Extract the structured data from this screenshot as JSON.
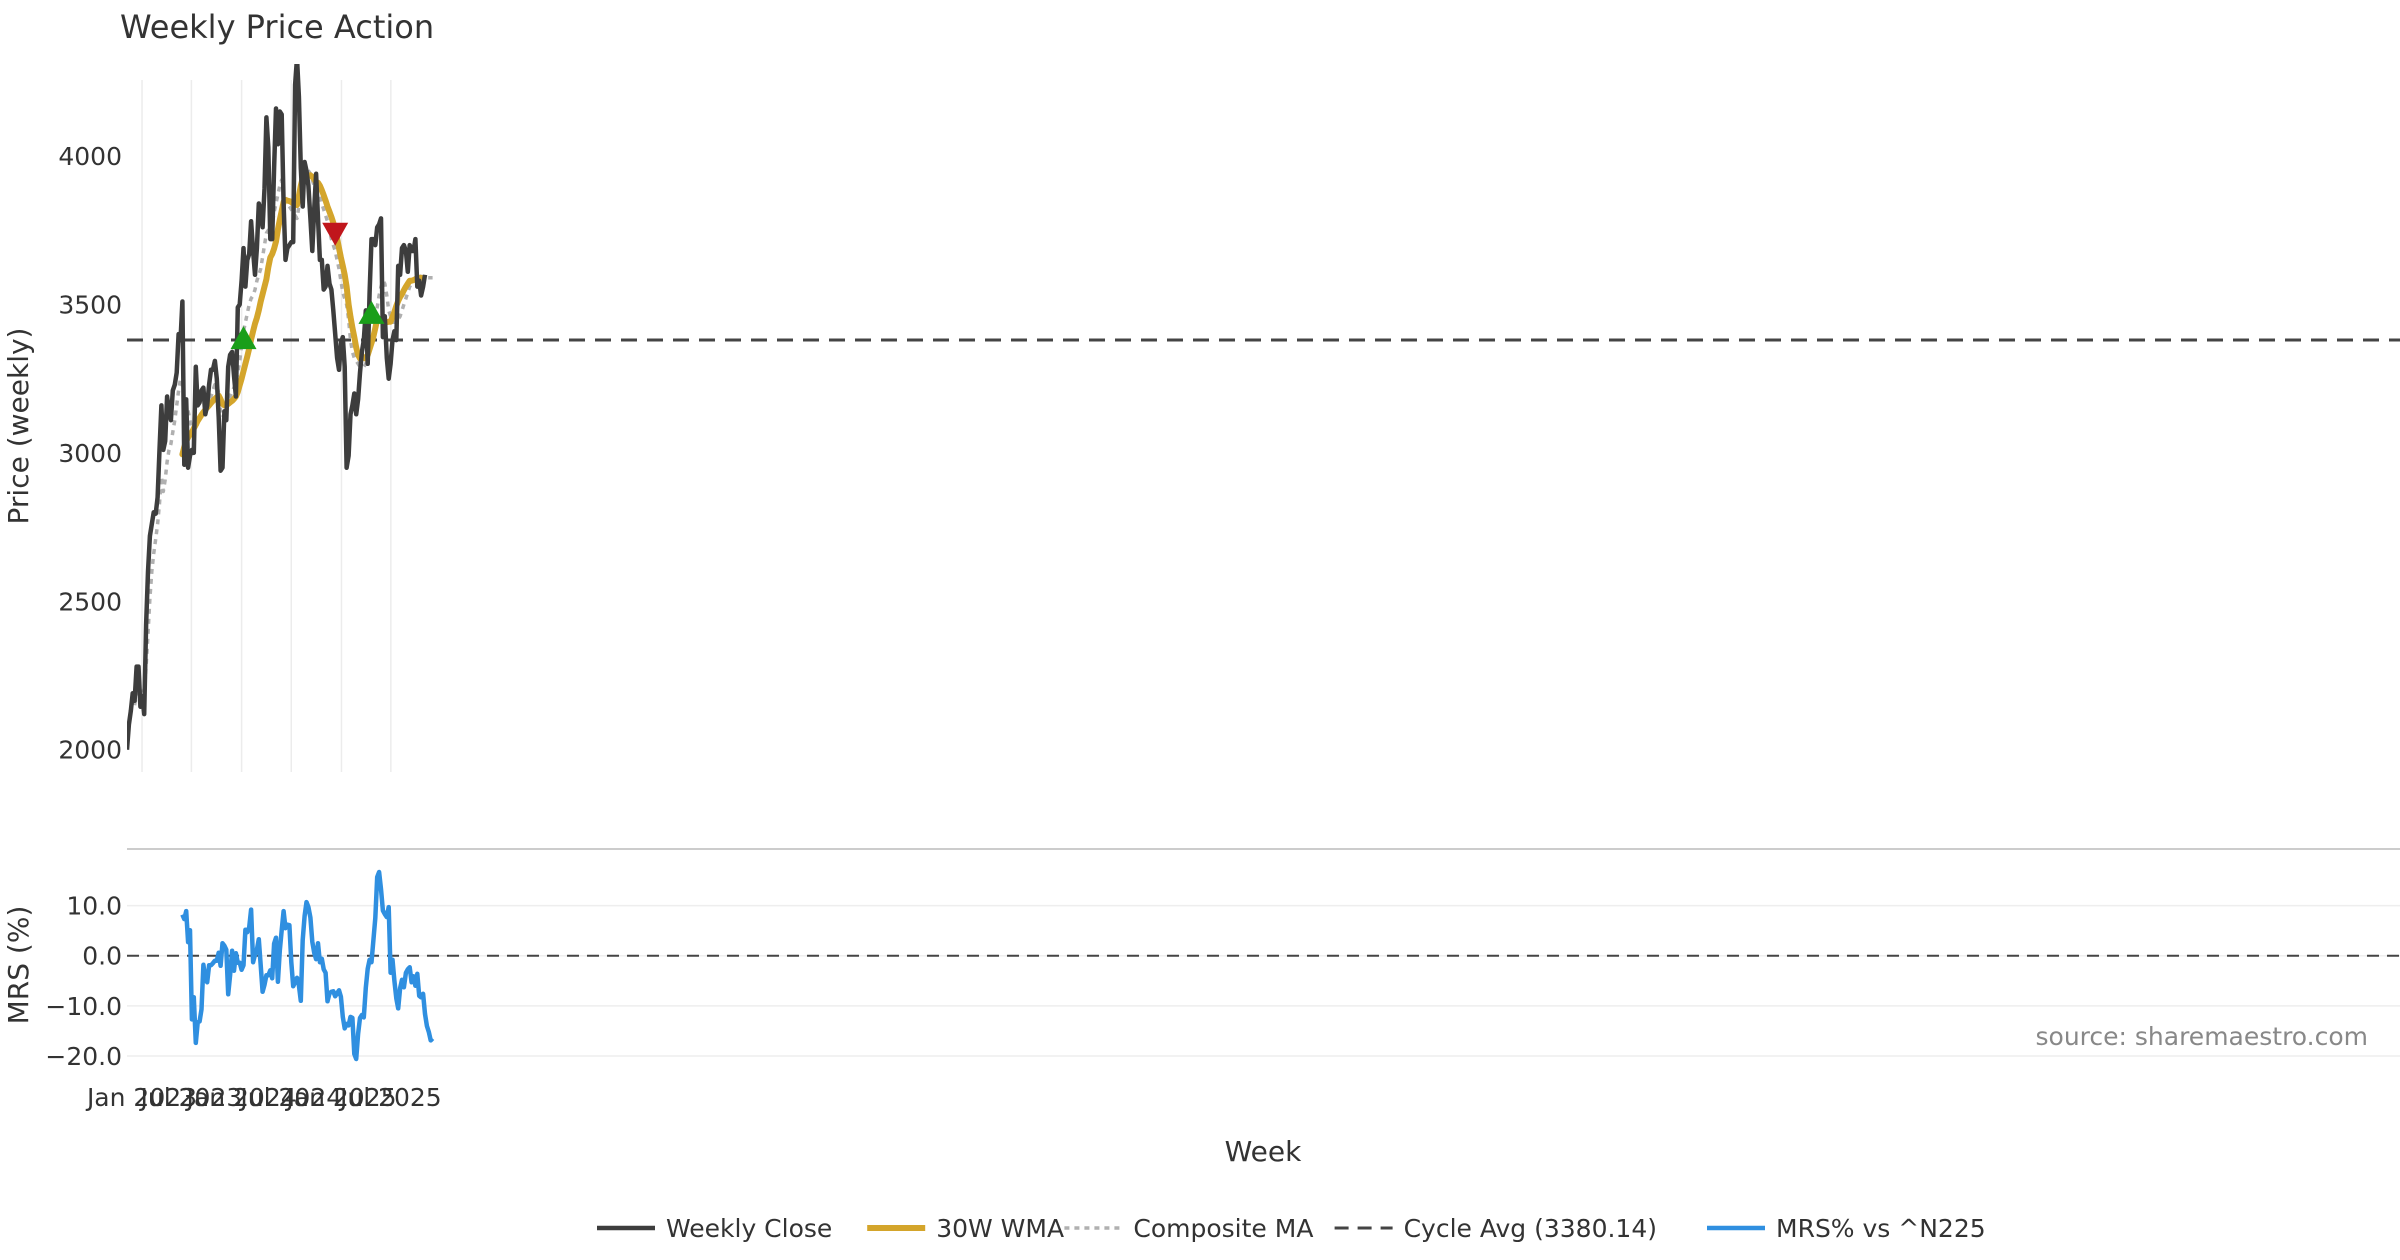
{
  "chart_data": {
    "type": "line",
    "title": "Weekly Price Action",
    "xlabel": "Week",
    "x_ticks": [
      "Jan 2023",
      "Jul 2023",
      "Jan 2024",
      "Jul 2024",
      "Jan 2025",
      "Jul 2025"
    ],
    "x_range": [
      "2022-11-07",
      "2025-09-22"
    ],
    "price_panel": {
      "ylabel": "Price (weekly)",
      "y_ticks": [
        2000,
        2500,
        3000,
        3500,
        4000
      ],
      "ylim": [
        1925,
        4310
      ],
      "cycle_avg": 3380.14
    },
    "mrs_panel": {
      "ylabel": "MRS (%)",
      "y_ticks": [
        -20,
        -10,
        0,
        10
      ],
      "y_tick_labels": [
        "−20.0",
        "−10.0",
        "0.0",
        "10.0"
      ],
      "ylim": [
        -23,
        19.5
      ],
      "zero_line": 0
    },
    "series": [
      {
        "name": "Weekly Close",
        "color": "#3d3d3d",
        "start_week": 0,
        "values": [
          2000,
          2085,
          2130,
          2190,
          2165,
          2280,
          2280,
          2145,
          2180,
          2120,
          2420,
          2600,
          2720,
          2760,
          2800,
          2795,
          2850,
          3010,
          3160,
          3010,
          3040,
          3190,
          3140,
          3110,
          3210,
          3230,
          3270,
          3400,
          3380,
          3510,
          2960,
          3180,
          2950,
          2990,
          3010,
          3000,
          3290,
          3160,
          3170,
          3210,
          3220,
          3130,
          3160,
          3230,
          3280,
          3280,
          3310,
          3250,
          3120,
          2940,
          2950,
          3140,
          3110,
          3290,
          3330,
          3340,
          3260,
          3190,
          3490,
          3500,
          3580,
          3690,
          3560,
          3650,
          3670,
          3780,
          3680,
          3600,
          3690,
          3840,
          3820,
          3760,
          3890,
          4130,
          4030,
          3720,
          3720,
          3960,
          4160,
          4040,
          4150,
          4140,
          3840,
          3650,
          3690,
          3700,
          3710,
          3710,
          4240,
          4330,
          4200,
          3960,
          3830,
          3980,
          3950,
          3900,
          3790,
          3680,
          3820,
          3940,
          3790,
          3650,
          3650,
          3550,
          3560,
          3630,
          3570,
          3550,
          3480,
          3400,
          3320,
          3280,
          3370,
          3390,
          3290,
          2950,
          2990,
          3130,
          3160,
          3200,
          3130,
          3180,
          3270,
          3340,
          3380,
          3480,
          3300,
          3540,
          3720,
          3720,
          3700,
          3760,
          3770,
          3790,
          3390,
          3460,
          3320,
          3250,
          3300,
          3380,
          3410,
          3380,
          3630,
          3600,
          3690,
          3700,
          3680,
          3610,
          3700,
          3680,
          3680,
          3720,
          3560,
          3580,
          3530,
          3560,
          3600
        ]
      },
      {
        "name": "30W WMA",
        "color": "#d4a52b",
        "start_week": 29,
        "values": [
          2995,
          3020,
          3040,
          3052,
          3062,
          3070,
          3082,
          3095,
          3108,
          3118,
          3128,
          3137,
          3145,
          3153,
          3160,
          3168,
          3175,
          3182,
          3188,
          3193,
          3180,
          3165,
          3160,
          3162,
          3165,
          3170,
          3175,
          3182,
          3190,
          3205,
          3228,
          3250,
          3275,
          3300,
          3325,
          3352,
          3382,
          3410,
          3435,
          3455,
          3480,
          3510,
          3535,
          3560,
          3585,
          3625,
          3658,
          3670,
          3688,
          3712,
          3752,
          3785,
          3815,
          3845,
          3852,
          3850,
          3848,
          3845,
          3840,
          3838,
          3835,
          3865,
          3900,
          3925,
          3930,
          3932,
          3934,
          3935,
          3930,
          3922,
          3912,
          3910,
          3900,
          3885,
          3868,
          3850,
          3830,
          3812,
          3795,
          3775,
          3750,
          3722,
          3690,
          3658,
          3630,
          3600,
          3560,
          3500,
          3458,
          3422,
          3390,
          3355,
          3330,
          3318,
          3318,
          3322,
          3318,
          3330,
          3350,
          3370,
          3392,
          3420,
          3450,
          3452,
          3450,
          3442,
          3438,
          3440,
          3442,
          3442,
          3458,
          3475,
          3495,
          3512,
          3525,
          3535,
          3548,
          3560,
          3570,
          3580,
          3580,
          3582,
          3585,
          3588,
          3590,
          3590
        ]
      },
      {
        "name": "Composite MA",
        "color": "#b0b0b0",
        "start_week": 4,
        "values": [
          2150,
          2190,
          2225,
          2220,
          2200,
          2200,
          2280,
          2390,
          2510,
          2600,
          2660,
          2710,
          2760,
          2830,
          2920,
          2870,
          2910,
          2970,
          3010,
          3030,
          3070,
          3110,
          3160,
          3210,
          3250,
          3230,
          3180,
          3160,
          3140,
          3110,
          3080,
          3070,
          3080,
          3100,
          3120,
          3130,
          3140,
          3150,
          3160,
          3175,
          3190,
          3210,
          3230,
          3230,
          3200,
          3140,
          3120,
          3130,
          3150,
          3175,
          3190,
          3205,
          3220,
          3235,
          3270,
          3310,
          3360,
          3410,
          3440,
          3470,
          3500,
          3520,
          3530,
          3550,
          3580,
          3600,
          3620,
          3660,
          3700,
          3740,
          3750,
          3740,
          3770,
          3810,
          3840,
          3870,
          3900,
          3920,
          3880,
          3860,
          3840,
          3830,
          3820,
          3810,
          3800,
          3790,
          3830,
          3880,
          3940,
          3960,
          3955,
          3950,
          3940,
          3920,
          3900,
          3880,
          3880,
          3870,
          3840,
          3820,
          3800,
          3780,
          3750,
          3720,
          3700,
          3680,
          3650,
          3620,
          3580,
          3540,
          3520,
          3500,
          3450,
          3380,
          3340,
          3320,
          3310,
          3300,
          3290,
          3290,
          3290,
          3300,
          3320,
          3340,
          3370,
          3400,
          3430,
          3490,
          3530,
          3560,
          3580,
          3570,
          3530,
          3480,
          3460,
          3440,
          3440,
          3440,
          3450,
          3460,
          3480,
          3500,
          3520,
          3540,
          3560,
          3570,
          3580,
          3590,
          3600,
          3600,
          3590,
          3590,
          3590,
          3590,
          3590,
          3590,
          3590
        ]
      },
      {
        "name": "Cycle Avg (3380.14)",
        "color": "#444444",
        "constant": 3380.14
      },
      {
        "name": "MRS% vs ^N225",
        "color": "#2f8fe0",
        "start_week": 29,
        "values": [
          8.2,
          7.3,
          8.9,
          2.7,
          5.1,
          -12.7,
          -8.3,
          -17.4,
          -13.3,
          -13.1,
          -10.7,
          -1.8,
          -4.6,
          -5.3,
          -1.9,
          -1.9,
          -1.5,
          -1.0,
          -1.0,
          0.6,
          -2.0,
          2.5,
          2.0,
          1.2,
          -7.7,
          -3.9,
          1.0,
          -3.0,
          0.5,
          -1.4,
          -1.4,
          -2.8,
          -1.9,
          5.2,
          4.7,
          5.7,
          9.2,
          -1.3,
          0.2,
          1.2,
          3.3,
          -1.9,
          -7.2,
          -5.8,
          -3.9,
          -3.9,
          -2.9,
          -4.5,
          2.4,
          3.6,
          -5.2,
          1.0,
          5.1,
          8.9,
          5.5,
          6.2,
          6.1,
          -1.3,
          -6.1,
          -5.3,
          -4.4,
          -5.9,
          -9.0,
          3.1,
          7.9,
          10.7,
          9.7,
          7.6,
          2.8,
          0.6,
          -0.7,
          2.5,
          -1.3,
          -0.6,
          -2.7,
          -3.4,
          -9.1,
          -7.5,
          -7.2,
          -7.1,
          -8.1,
          -7.5,
          -6.9,
          -8.2,
          -12.2,
          -14.5,
          -13.6,
          -13.9,
          -12.2,
          -12.4,
          -19.6,
          -20.6,
          -15.6,
          -12.4,
          -11.8,
          -12.3,
          -6.4,
          -2.6,
          -0.8,
          -1.3,
          3.1,
          7.5,
          15.7,
          16.7,
          13.3,
          9.0,
          8.3,
          7.7,
          9.7,
          -3.4,
          -0.8,
          -5.0,
          -8.5,
          -10.5,
          -6.5,
          -4.8,
          -6.3,
          -3.4,
          -2.7,
          -2.3,
          -5.3,
          -4.1,
          -6.0,
          -3.6,
          -8.0,
          -8.3,
          -7.6,
          -11.6,
          -14.0,
          -15.2,
          -16.9,
          -16.5
        ]
      }
    ],
    "markers": [
      {
        "type": "buy",
        "week": 61,
        "value": 3380,
        "color": "#1a9e1a"
      },
      {
        "type": "sell",
        "week": 109,
        "value": 3745,
        "color": "#c0161c"
      },
      {
        "type": "buy",
        "week": 128,
        "value": 3465,
        "color": "#1a9e1a"
      }
    ],
    "legend": {
      "placement": "bottom-center",
      "items": [
        "Weekly Close",
        "30W WMA",
        "Composite MA",
        "Cycle Avg (3380.14)",
        "MRS% vs ^N225"
      ]
    },
    "source": "source: sharemaestro.com"
  }
}
